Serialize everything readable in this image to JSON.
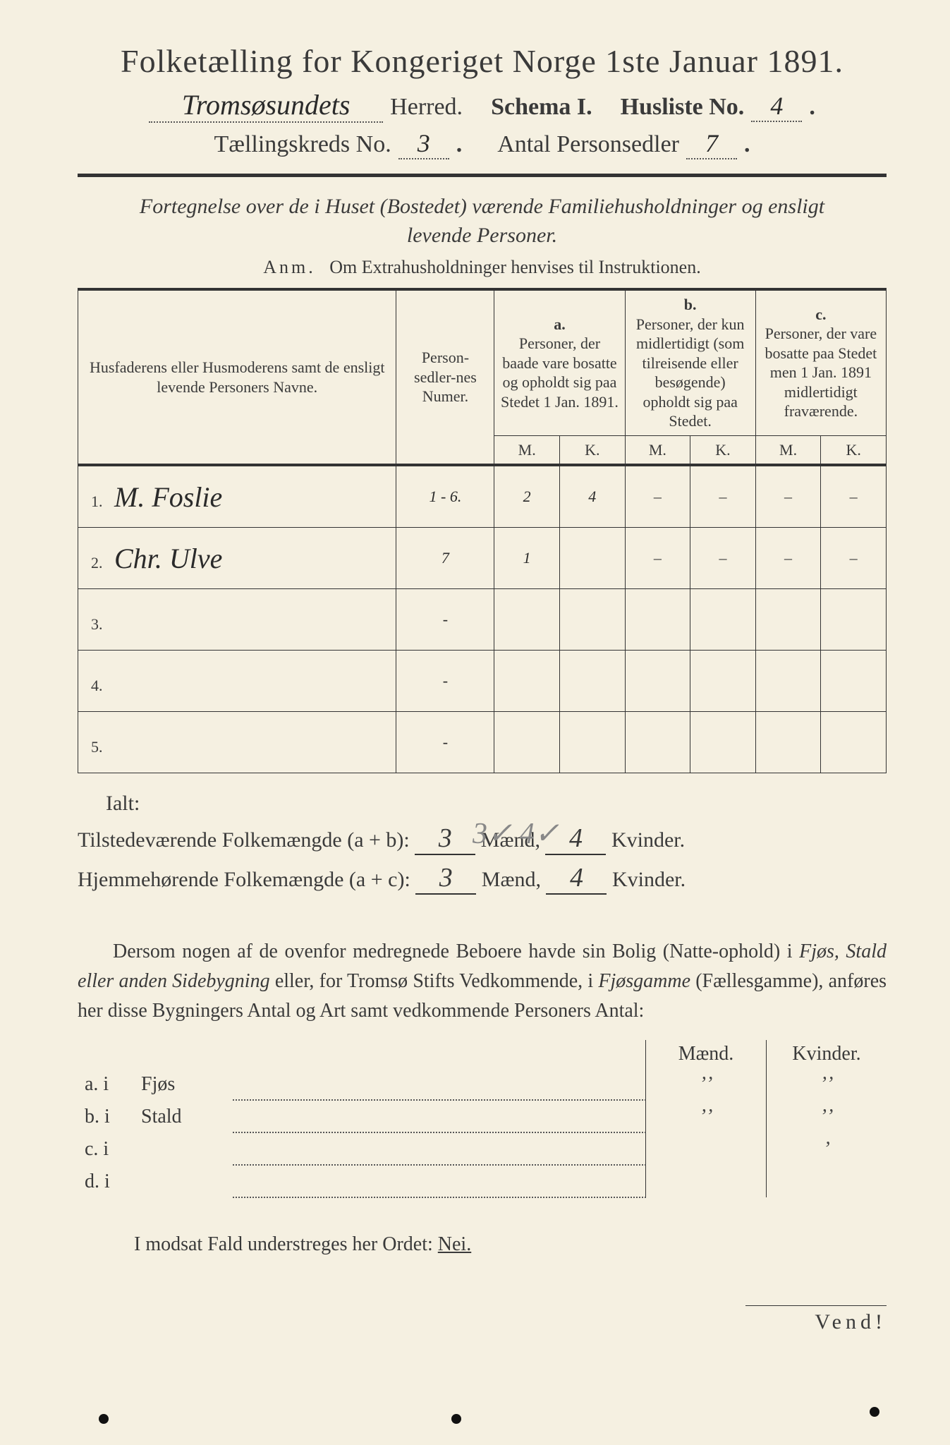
{
  "header": {
    "title": "Folketælling for Kongeriget Norge 1ste Januar 1891.",
    "herred_handwritten": "Tromsøsundets",
    "herred_label": "Herred.",
    "schema_label": "Schema I.",
    "husliste_label": "Husliste No.",
    "husliste_no": "4",
    "kreds_label": "Tællingskreds No.",
    "kreds_no": "3",
    "antal_label": "Antal Personsedler",
    "antal_no": "7"
  },
  "subtitle": {
    "line1": "Fortegnelse over de i Huset (Bostedet) værende Familiehusholdninger og ensligt",
    "line2": "levende Personer.",
    "anm_prefix": "Anm.",
    "anm_text": "Om Extrahusholdninger henvises til Instruktionen."
  },
  "table": {
    "head": {
      "col1": "Husfaderens eller Husmoderens samt de ensligt levende Personers Navne.",
      "col2": "Person-sedler-nes Numer.",
      "a_label": "a.",
      "a_text": "Personer, der baade vare bosatte og opholdt sig paa Stedet 1 Jan. 1891.",
      "b_label": "b.",
      "b_text": "Personer, der kun midlertidigt (som tilreisende eller besøgende) opholdt sig paa Stedet.",
      "c_label": "c.",
      "c_text": "Personer, der vare bosatte paa Stedet men 1 Jan. 1891 midlertidigt fraværende.",
      "m": "M.",
      "k": "K."
    },
    "rows": [
      {
        "n": "1.",
        "name": "M. Foslie",
        "num": "1 - 6.",
        "am": "2",
        "ak": "4",
        "bm": "–",
        "bk": "–",
        "cm": "–",
        "ck": "–"
      },
      {
        "n": "2.",
        "name": "Chr. Ulve",
        "num": "7",
        "am": "1",
        "ak": "",
        "bm": "–",
        "bk": "–",
        "cm": "–",
        "ck": "–"
      },
      {
        "n": "3.",
        "name": "",
        "num": "-",
        "am": "",
        "ak": "",
        "bm": "",
        "bk": "",
        "cm": "",
        "ck": ""
      },
      {
        "n": "4.",
        "name": "",
        "num": "-",
        "am": "",
        "ak": "",
        "bm": "",
        "bk": "",
        "cm": "",
        "ck": ""
      },
      {
        "n": "5.",
        "name": "",
        "num": "-",
        "am": "",
        "ak": "",
        "bm": "",
        "bk": "",
        "cm": "",
        "ck": ""
      }
    ],
    "ialt_label": "Ialt:",
    "pencil_tally": "3✓ 4✓"
  },
  "sums": {
    "line1_label": "Tilstedeværende Folkemængde (a + b):",
    "line1_m": "3",
    "line1_k": "4",
    "line2_label": "Hjemmehørende Folkemængde (a + c):",
    "line2_m": "3",
    "line2_k": "4",
    "maend": "Mænd,",
    "kvinder": "Kvinder."
  },
  "paragraph": {
    "text_a": "Dersom nogen af de ovenfor medregnede Beboere havde sin Bolig (Natte-ophold) i ",
    "it1": "Fjøs, Stald eller anden Sidebygning",
    "text_b": " eller, for Tromsø Stifts Vedkommende, i ",
    "it2": "Fjøsgamme",
    "text_c": " (Fællesgamme), anføres her disse Bygningers Antal og Art samt vedkommende Personers Antal:"
  },
  "second_table": {
    "head_m": "Mænd.",
    "head_k": "Kvinder.",
    "rows": [
      {
        "lab": "a.  i",
        "word": "Fjøs",
        "m": "ʼʼ",
        "k": "ʼʼ"
      },
      {
        "lab": "b.  i",
        "word": "Stald",
        "m": "ʼʼ",
        "k": "ʼʼ"
      },
      {
        "lab": "c.  i",
        "word": "",
        "m": "",
        "k": "ʼ"
      },
      {
        "lab": "d.  i",
        "word": "",
        "m": "",
        "k": ""
      }
    ]
  },
  "footer": {
    "nei_text": "I modsat Fald understreges her Ordet: ",
    "nei_word": "Nei.",
    "vend": "Vend!"
  },
  "colors": {
    "paper": "#f5f0e1",
    "ink": "#3a3a3a",
    "pencil": "#888888",
    "background": "#1a1a1a"
  }
}
